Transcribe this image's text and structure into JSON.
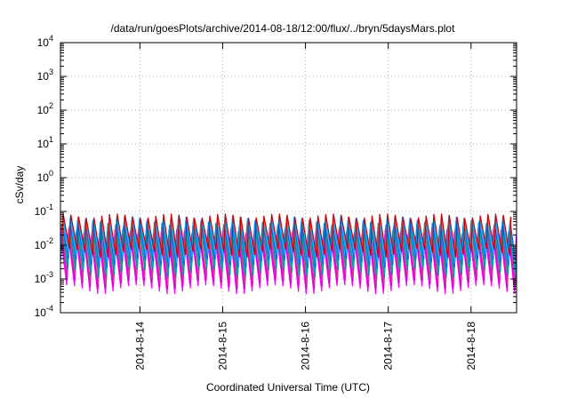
{
  "chart_data": {
    "type": "line",
    "title": "/data/run/goesPlots/archive/2014-08-18/12:00/flux/../bryn/5daysMars.plot",
    "xlabel": "Coordinated Universal Time (UTC)",
    "ylabel": "cSv/day",
    "yscale": "log",
    "ylim": [
      0.0001,
      10000
    ],
    "xlim": [
      13.04,
      18.55
    ],
    "grid": true,
    "x_ticks": [
      {
        "value": 14,
        "label": "2014-8-14"
      },
      {
        "value": 15,
        "label": "2014-8-15"
      },
      {
        "value": 16,
        "label": "2014-8-16"
      },
      {
        "value": 17,
        "label": "2014-8-17"
      },
      {
        "value": 18,
        "label": "2014-8-18"
      }
    ],
    "y_ticks": [
      {
        "value": 0.0001,
        "base": "10",
        "exp": "-4"
      },
      {
        "value": 0.001,
        "base": "10",
        "exp": "-3"
      },
      {
        "value": 0.01,
        "base": "10",
        "exp": "-2"
      },
      {
        "value": 0.1,
        "base": "10",
        "exp": "-1"
      },
      {
        "value": 1,
        "base": "10",
        "exp": "0"
      },
      {
        "value": 10,
        "base": "10",
        "exp": "1"
      },
      {
        "value": 100,
        "base": "10",
        "exp": "2"
      },
      {
        "value": 1000,
        "base": "10",
        "exp": "3"
      },
      {
        "value": 10000,
        "base": "10",
        "exp": "4"
      }
    ],
    "cycle_period_days": 0.0933,
    "series": [
      {
        "color": "#ff00ff",
        "peak": 0.02,
        "trough": 0.0005
      },
      {
        "color": "#cc00cc",
        "peak": 0.025,
        "trough": 0.0007
      },
      {
        "color": "#e0329e",
        "peak": 0.03,
        "trough": 0.0009
      },
      {
        "color": "#009090",
        "peak": 0.04,
        "trough": 0.0015
      },
      {
        "color": "#00aaaa",
        "peak": 0.045,
        "trough": 0.002
      },
      {
        "color": "#0060ff",
        "peak": 0.05,
        "trough": 0.003
      },
      {
        "color": "#3399ff",
        "peak": 0.06,
        "trough": 0.004
      },
      {
        "color": "#00bfff",
        "peak": 0.065,
        "trough": 0.005
      },
      {
        "color": "#d00000",
        "peak": 0.075,
        "trough": 0.006
      }
    ]
  }
}
